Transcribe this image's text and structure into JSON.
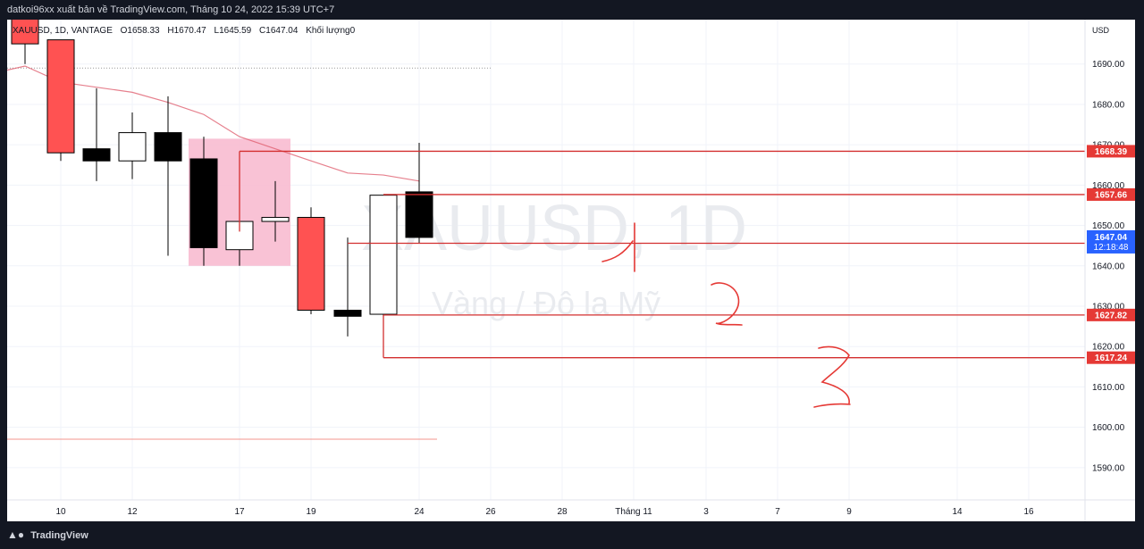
{
  "header": {
    "publish_line": "datkoi96xx xuất bản về TradingView.com, Tháng 10 24, 2022 15:39 UTC+7"
  },
  "symbol_info": {
    "symbol": "XAUUSD, 1D, VANTAGE",
    "open": "O1658.33",
    "high": "H1670.47",
    "low": "L1645.59",
    "close": "C1647.04",
    "volume": "Khối lượng0"
  },
  "watermark": {
    "symbol": "XAUUSD, 1D",
    "description": "Vàng / Đô la Mỹ"
  },
  "footer": {
    "logo_text": "TradingView"
  },
  "colors": {
    "up": "#ffffff",
    "down": "#000000",
    "highlight_down": "#ff5252",
    "line": "#e06070",
    "grid": "#f0f3fa",
    "level": "#d32f2f"
  },
  "chart_data": {
    "type": "candlestick",
    "currency": "USD",
    "ylim": [
      1582,
      1701
    ],
    "y_ticks": [
      1590,
      1600,
      1610,
      1620,
      1630,
      1640,
      1650,
      1660,
      1670,
      1680,
      1690
    ],
    "x_ticks": [
      "10",
      "12",
      "17",
      "19",
      "24",
      "26",
      "28",
      "Tháng 11",
      "3",
      "7",
      "9",
      "14",
      "16"
    ],
    "candles": [
      {
        "date": "Oct 7",
        "o": 1712.0,
        "h": 1722.0,
        "l": 1690.0,
        "c": 1695.0,
        "color": "red"
      },
      {
        "date": "Oct 10",
        "o": 1696.0,
        "h": 1696.0,
        "l": 1666.0,
        "c": 1668.0,
        "color": "red"
      },
      {
        "date": "Oct 11",
        "o": 1666.0,
        "h": 1684.0,
        "l": 1661.0,
        "c": 1669.0,
        "color": "black"
      },
      {
        "date": "Oct 12",
        "o": 1666.0,
        "h": 1678.0,
        "l": 1661.5,
        "c": 1673.0,
        "color": "white"
      },
      {
        "date": "Oct 13",
        "o": 1673.0,
        "h": 1682.0,
        "l": 1642.5,
        "c": 1666.0,
        "color": "black"
      },
      {
        "date": "Oct 14",
        "o": 1666.5,
        "h": 1672.0,
        "l": 1640.0,
        "c": 1644.5,
        "color": "black"
      },
      {
        "date": "Oct 17",
        "o": 1644.0,
        "h": 1668.0,
        "l": 1640.0,
        "c": 1651.0,
        "color": "white"
      },
      {
        "date": "Oct 18",
        "o": 1652.0,
        "h": 1661.0,
        "l": 1646.0,
        "c": 1651.0,
        "color": "white"
      },
      {
        "date": "Oct 19",
        "o": 1652.0,
        "h": 1654.5,
        "l": 1628.0,
        "c": 1629.0,
        "color": "red"
      },
      {
        "date": "Oct 20",
        "o": 1629.0,
        "h": 1647.0,
        "l": 1622.5,
        "c": 1627.5,
        "color": "black"
      },
      {
        "date": "Oct 21",
        "o": 1628.0,
        "h": 1657.5,
        "l": 1617.5,
        "c": 1657.5,
        "color": "white"
      },
      {
        "date": "Oct 24",
        "o": 1658.33,
        "h": 1670.47,
        "l": 1645.59,
        "c": 1647.04,
        "color": "black"
      }
    ],
    "moving_average": [
      {
        "date": "Oct 6",
        "v": 1688.5
      },
      {
        "date": "Oct 7",
        "v": 1689.5
      },
      {
        "date": "Oct 10",
        "v": 1685.5
      },
      {
        "date": "Oct 12",
        "v": 1683.0
      },
      {
        "date": "Oct 13",
        "v": 1680.5
      },
      {
        "date": "Oct 14",
        "v": 1677.5
      },
      {
        "date": "Oct 17",
        "v": 1672.0
      },
      {
        "date": "Oct 18",
        "v": 1669.0
      },
      {
        "date": "Oct 19",
        "v": 1666.0
      },
      {
        "date": "Oct 20",
        "v": 1663.0
      },
      {
        "date": "Oct 21",
        "v": 1662.5
      },
      {
        "date": "Oct 24",
        "v": 1661.0
      }
    ],
    "highlight_box": {
      "from": "Oct 14",
      "to": "Oct 18",
      "top": 1671.5,
      "bottom": 1640.0
    },
    "levels": [
      {
        "price": 1668.39,
        "label": "1668.39",
        "from": "Oct 17"
      },
      {
        "price": 1657.66,
        "label": "1657.66",
        "from": "Oct 21"
      },
      {
        "price": 1645.6,
        "label": "1645.60",
        "from": "Oct 20"
      },
      {
        "price": 1627.82,
        "label": "1627.82",
        "from": "Oct 21"
      },
      {
        "price": 1617.24,
        "label": "1617.24",
        "from": "Oct 21"
      }
    ],
    "last_price": {
      "price": 1647.04,
      "label": "1647.04",
      "countdown": "12:18:48"
    },
    "dotted_level": 1689.0,
    "annotations": [
      "1",
      "2",
      "3"
    ]
  }
}
